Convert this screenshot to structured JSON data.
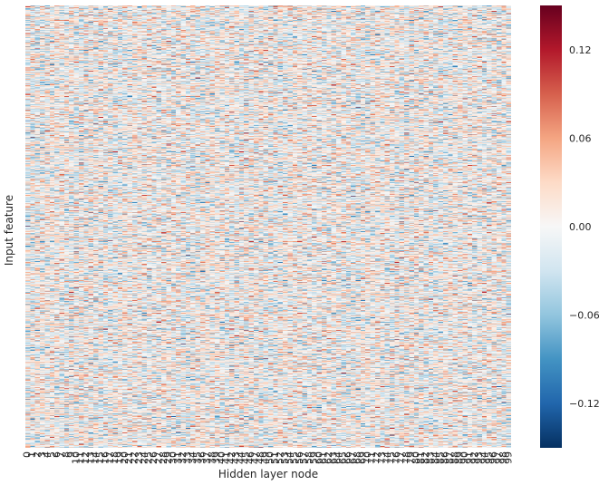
{
  "chart_data": {
    "type": "heatmap",
    "title": "",
    "xlabel": "Hidden layer node",
    "ylabel": "Input feature",
    "x_categories_count": 100,
    "x_tick_labels": [
      "0",
      "1",
      "2",
      "3",
      "4",
      "5",
      "6",
      "7",
      "8",
      "9",
      "10",
      "11",
      "12",
      "13",
      "14",
      "15",
      "16",
      "17",
      "18",
      "19",
      "20",
      "21",
      "22",
      "23",
      "24",
      "25",
      "26",
      "27",
      "28",
      "29",
      "30",
      "31",
      "32",
      "33",
      "34",
      "35",
      "36",
      "37",
      "38",
      "39",
      "40",
      "41",
      "42",
      "43",
      "44",
      "45",
      "46",
      "47",
      "48",
      "49",
      "50",
      "51",
      "52",
      "53",
      "54",
      "55",
      "56",
      "57",
      "58",
      "59",
      "60",
      "61",
      "62",
      "63",
      "64",
      "65",
      "66",
      "67",
      "68",
      "69",
      "70",
      "71",
      "72",
      "73",
      "74",
      "75",
      "76",
      "77",
      "78",
      "79",
      "80",
      "81",
      "82",
      "83",
      "84",
      "85",
      "86",
      "87",
      "88",
      "89",
      "90",
      "91",
      "92",
      "93",
      "94",
      "95",
      "96",
      "97",
      "98",
      "99"
    ],
    "y_tick_labels": [],
    "rows_approx": 784,
    "value_range": [
      -0.15,
      0.15
    ],
    "colormap": "RdBu_r",
    "colorbar": {
      "ticks": [
        0.12,
        0.06,
        0.0,
        -0.06,
        -0.12
      ],
      "tick_labels": [
        "0.12",
        "0.06",
        "0.00",
        "−0.06",
        "−0.12"
      ],
      "min": -0.15,
      "max": 0.15
    },
    "colors": {
      "low": "#053061",
      "mid": "#f7f7f7",
      "high": "#67001f"
    }
  }
}
